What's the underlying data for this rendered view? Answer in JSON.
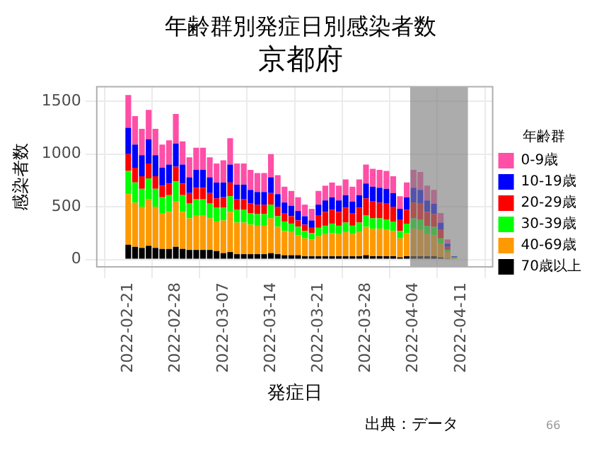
{
  "chart_data": {
    "type": "bar",
    "title": "年齢群別発症日別感染者数",
    "subtitle": "京都府",
    "xlabel": "発症日",
    "ylabel": "感染者数",
    "legend_title": "年齢群",
    "x": [
      "2022-02-21",
      "2022-02-22",
      "2022-02-23",
      "2022-02-24",
      "2022-02-25",
      "2022-02-26",
      "2022-02-27",
      "2022-02-28",
      "2022-03-01",
      "2022-03-02",
      "2022-03-03",
      "2022-03-04",
      "2022-03-05",
      "2022-03-06",
      "2022-03-07",
      "2022-03-08",
      "2022-03-09",
      "2022-03-10",
      "2022-03-11",
      "2022-03-12",
      "2022-03-13",
      "2022-03-14",
      "2022-03-15",
      "2022-03-16",
      "2022-03-17",
      "2022-03-18",
      "2022-03-19",
      "2022-03-20",
      "2022-03-21",
      "2022-03-22",
      "2022-03-23",
      "2022-03-24",
      "2022-03-25",
      "2022-03-26",
      "2022-03-27",
      "2022-03-28",
      "2022-03-29",
      "2022-03-30",
      "2022-03-31",
      "2022-04-01",
      "2022-04-02",
      "2022-04-03",
      "2022-04-04",
      "2022-04-05",
      "2022-04-06",
      "2022-04-07",
      "2022-04-08",
      "2022-04-09",
      "2022-04-10"
    ],
    "stacked": true,
    "series": [
      {
        "name": "70歳以上",
        "color": "#000000",
        "values": [
          140,
          120,
          110,
          130,
          110,
          100,
          100,
          120,
          100,
          90,
          90,
          90,
          90,
          80,
          60,
          70,
          50,
          50,
          50,
          50,
          50,
          60,
          50,
          40,
          40,
          40,
          30,
          30,
          30,
          30,
          30,
          30,
          30,
          30,
          30,
          40,
          30,
          30,
          30,
          30,
          20,
          30,
          30,
          30,
          30,
          30,
          20,
          10,
          0
        ]
      },
      {
        "name": "40-69歳",
        "color": "#ff9900",
        "values": [
          480,
          420,
          390,
          440,
          390,
          340,
          350,
          430,
          350,
          300,
          330,
          330,
          300,
          280,
          310,
          380,
          300,
          300,
          280,
          270,
          270,
          330,
          260,
          230,
          220,
          190,
          170,
          160,
          190,
          210,
          220,
          210,
          230,
          210,
          230,
          270,
          260,
          260,
          250,
          240,
          180,
          220,
          260,
          250,
          210,
          200,
          130,
          60,
          10
        ]
      },
      {
        "name": "30-39歳",
        "color": "#00ff00",
        "values": [
          220,
          190,
          170,
          200,
          170,
          150,
          160,
          190,
          160,
          140,
          150,
          150,
          140,
          130,
          120,
          150,
          120,
          120,
          110,
          110,
          110,
          130,
          100,
          90,
          80,
          80,
          70,
          60,
          80,
          80,
          90,
          80,
          90,
          80,
          90,
          110,
          100,
          100,
          100,
          90,
          70,
          90,
          100,
          100,
          80,
          80,
          50,
          20,
          10
        ]
      },
      {
        "name": "20-29歳",
        "color": "#ff0000",
        "values": [
          160,
          140,
          120,
          140,
          120,
          110,
          110,
          140,
          110,
          100,
          110,
          110,
          100,
          90,
          100,
          130,
          100,
          100,
          90,
          90,
          90,
          110,
          90,
          80,
          70,
          60,
          60,
          50,
          120,
          130,
          130,
          130,
          140,
          120,
          140,
          160,
          160,
          150,
          150,
          140,
          110,
          130,
          150,
          150,
          130,
          120,
          80,
          30,
          0
        ]
      },
      {
        "name": "10-19歳",
        "color": "#0000ff",
        "values": [
          250,
          220,
          200,
          230,
          200,
          170,
          180,
          220,
          180,
          150,
          170,
          170,
          150,
          150,
          140,
          170,
          140,
          140,
          130,
          120,
          120,
          150,
          120,
          100,
          100,
          90,
          80,
          70,
          100,
          110,
          120,
          110,
          120,
          110,
          120,
          140,
          140,
          140,
          140,
          130,
          100,
          120,
          140,
          130,
          110,
          100,
          70,
          30,
          10
        ]
      },
      {
        "name": "0-9歳",
        "color": "#ff4fa7",
        "values": [
          310,
          270,
          250,
          280,
          250,
          220,
          230,
          280,
          220,
          190,
          210,
          210,
          190,
          180,
          210,
          250,
          200,
          200,
          190,
          180,
          180,
          220,
          180,
          150,
          140,
          130,
          110,
          110,
          130,
          140,
          140,
          140,
          150,
          140,
          150,
          180,
          170,
          170,
          170,
          160,
          120,
          140,
          170,
          170,
          140,
          130,
          90,
          40,
          0
        ]
      }
    ],
    "xlim": [
      "2022-02-20",
      "2022-04-12"
    ],
    "xticks": [
      "2022-02-21",
      "2022-02-28",
      "2022-03-07",
      "2022-03-14",
      "2022-03-21",
      "2022-03-28",
      "2022-04-04",
      "2022-04-11"
    ],
    "ylim": [
      -70,
      1640
    ],
    "yticks": [
      0,
      500,
      1000,
      1500
    ],
    "bands": [
      {
        "axis": "x",
        "from": "2022-04-04",
        "to": "2022-04-12",
        "color": "#7f7f7f"
      }
    ],
    "grid": true,
    "legend": "right",
    "annotations": [
      "出典：データ",
      "66"
    ]
  }
}
